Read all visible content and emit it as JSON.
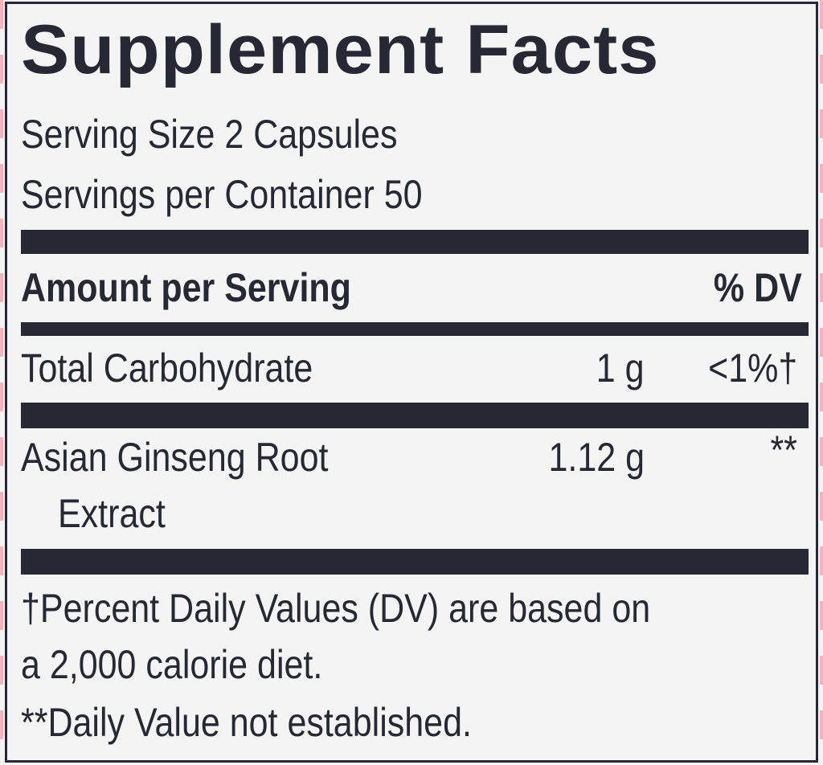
{
  "panel": {
    "title": "Supplement Facts",
    "serving_size": "Serving Size 2 Capsules",
    "servings_per_container": "Servings per Container 50"
  },
  "table": {
    "header": {
      "amount": "Amount per Serving",
      "dv": "% DV"
    },
    "rows": [
      {
        "name": "Total Carbohydrate",
        "name_cont": "",
        "amount": "1 g",
        "dv": "<1%†"
      },
      {
        "name": "Asian Ginseng Root",
        "name_cont": "Extract",
        "amount": "1.12 g",
        "dv": "**"
      }
    ]
  },
  "footnotes": {
    "line1": "†Percent Daily Values (DV) are based on",
    "line2": "a 2,000 calorie diet.",
    "line3": "**Daily Value not established."
  },
  "colors": {
    "ink": "#262933",
    "background": "#f4f4f4",
    "cut_marks": "#f4b6be"
  }
}
